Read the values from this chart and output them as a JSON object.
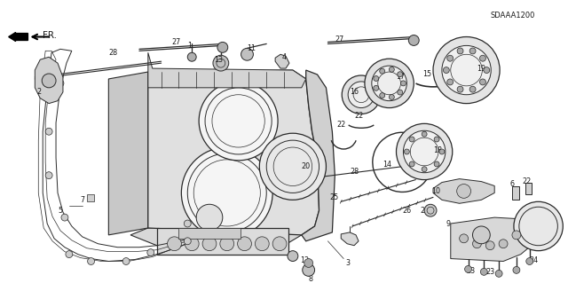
{
  "bg_color": "#ffffff",
  "fig_width": 6.4,
  "fig_height": 3.19,
  "dpi": 100,
  "diagram_code": "SDAAA1200",
  "fr_label": "FR.",
  "text_color": "#1a1a1a",
  "line_color": "#2a2a2a",
  "label_fontsize": 5.8,
  "code_fontsize": 6.0,
  "lw_main": 0.9,
  "lw_thin": 0.5,
  "lw_med": 0.7
}
